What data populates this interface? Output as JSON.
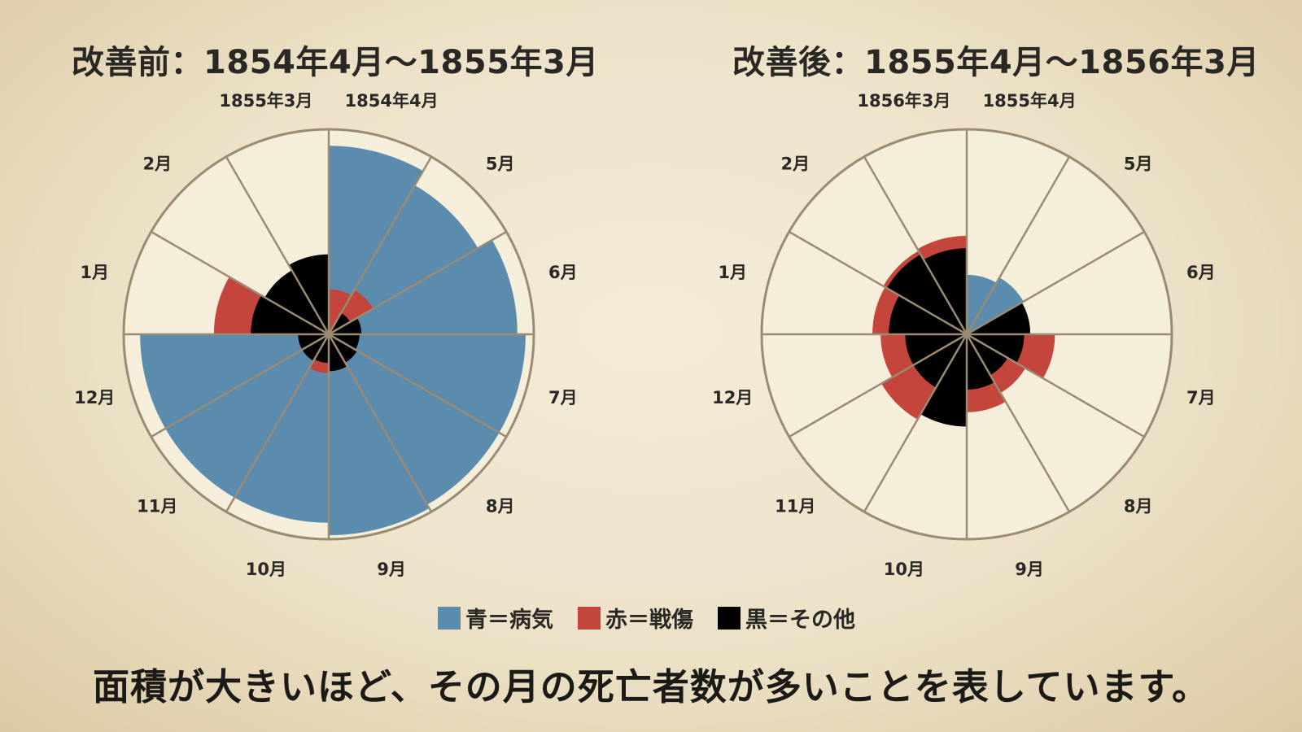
{
  "chart_data": [
    {
      "type": "polar-area",
      "title": "改善前：1854年4月～1855年3月",
      "categories": [
        "1854年4月",
        "5月",
        "6月",
        "7月",
        "8月",
        "9月",
        "10月",
        "11月",
        "12月",
        "1月",
        "2月",
        "1855年3月"
      ],
      "series": [
        {
          "name": "青＝病気",
          "values": [
            0.92,
            0.84,
            0.92,
            0.96,
            0.96,
            0.98,
            0.92,
            0.92,
            0.92,
            0,
            0,
            0
          ]
        },
        {
          "name": "赤＝戦傷",
          "values": [
            0.22,
            0.25,
            0,
            0,
            0,
            0,
            0.19,
            0,
            0,
            0.56,
            0,
            0
          ]
        },
        {
          "name": "黒＝その他",
          "values": [
            0,
            0.12,
            0.16,
            0.15,
            0.16,
            0.18,
            0.14,
            0.15,
            0.15,
            0.38,
            0.36,
            0.39
          ]
        }
      ],
      "rlim": [
        0,
        1
      ]
    },
    {
      "type": "polar-area",
      "title": "改善後：1855年4月～1856年3月",
      "categories": [
        "1855年4月",
        "5月",
        "6月",
        "7月",
        "8月",
        "9月",
        "10月",
        "11月",
        "12月",
        "1月",
        "2月",
        "1856年3月"
      ],
      "series": [
        {
          "name": "青＝病気",
          "values": [
            0.29,
            0.32,
            0.31,
            0,
            0,
            0,
            0,
            0,
            0,
            0,
            0,
            0
          ]
        },
        {
          "name": "赤＝戦傷",
          "values": [
            0,
            0,
            0,
            0.43,
            0.33,
            0.38,
            0.45,
            0.48,
            0.42,
            0.46,
            0.47,
            0.48
          ]
        },
        {
          "name": "黒＝その他",
          "values": [
            0,
            0,
            0.31,
            0.28,
            0.23,
            0.27,
            0.45,
            0.3,
            0.3,
            0.38,
            0.45,
            0.42
          ]
        }
      ],
      "rlim": [
        0,
        1
      ]
    }
  ],
  "legend": [
    {
      "label": "青＝病気",
      "color": "#5b8bad"
    },
    {
      "label": "赤＝戦傷",
      "color": "#c4453b"
    },
    {
      "label": "黒＝その他",
      "color": "#000000"
    }
  ],
  "caption": "面積が大きいほど、その月の死亡者数が多いことを表しています。",
  "colors": {
    "disease": "#5b8bad",
    "wounds": "#c4453b",
    "other": "#000000",
    "wedge_bg": "#f5eedb",
    "outline": "#9a8b72"
  }
}
